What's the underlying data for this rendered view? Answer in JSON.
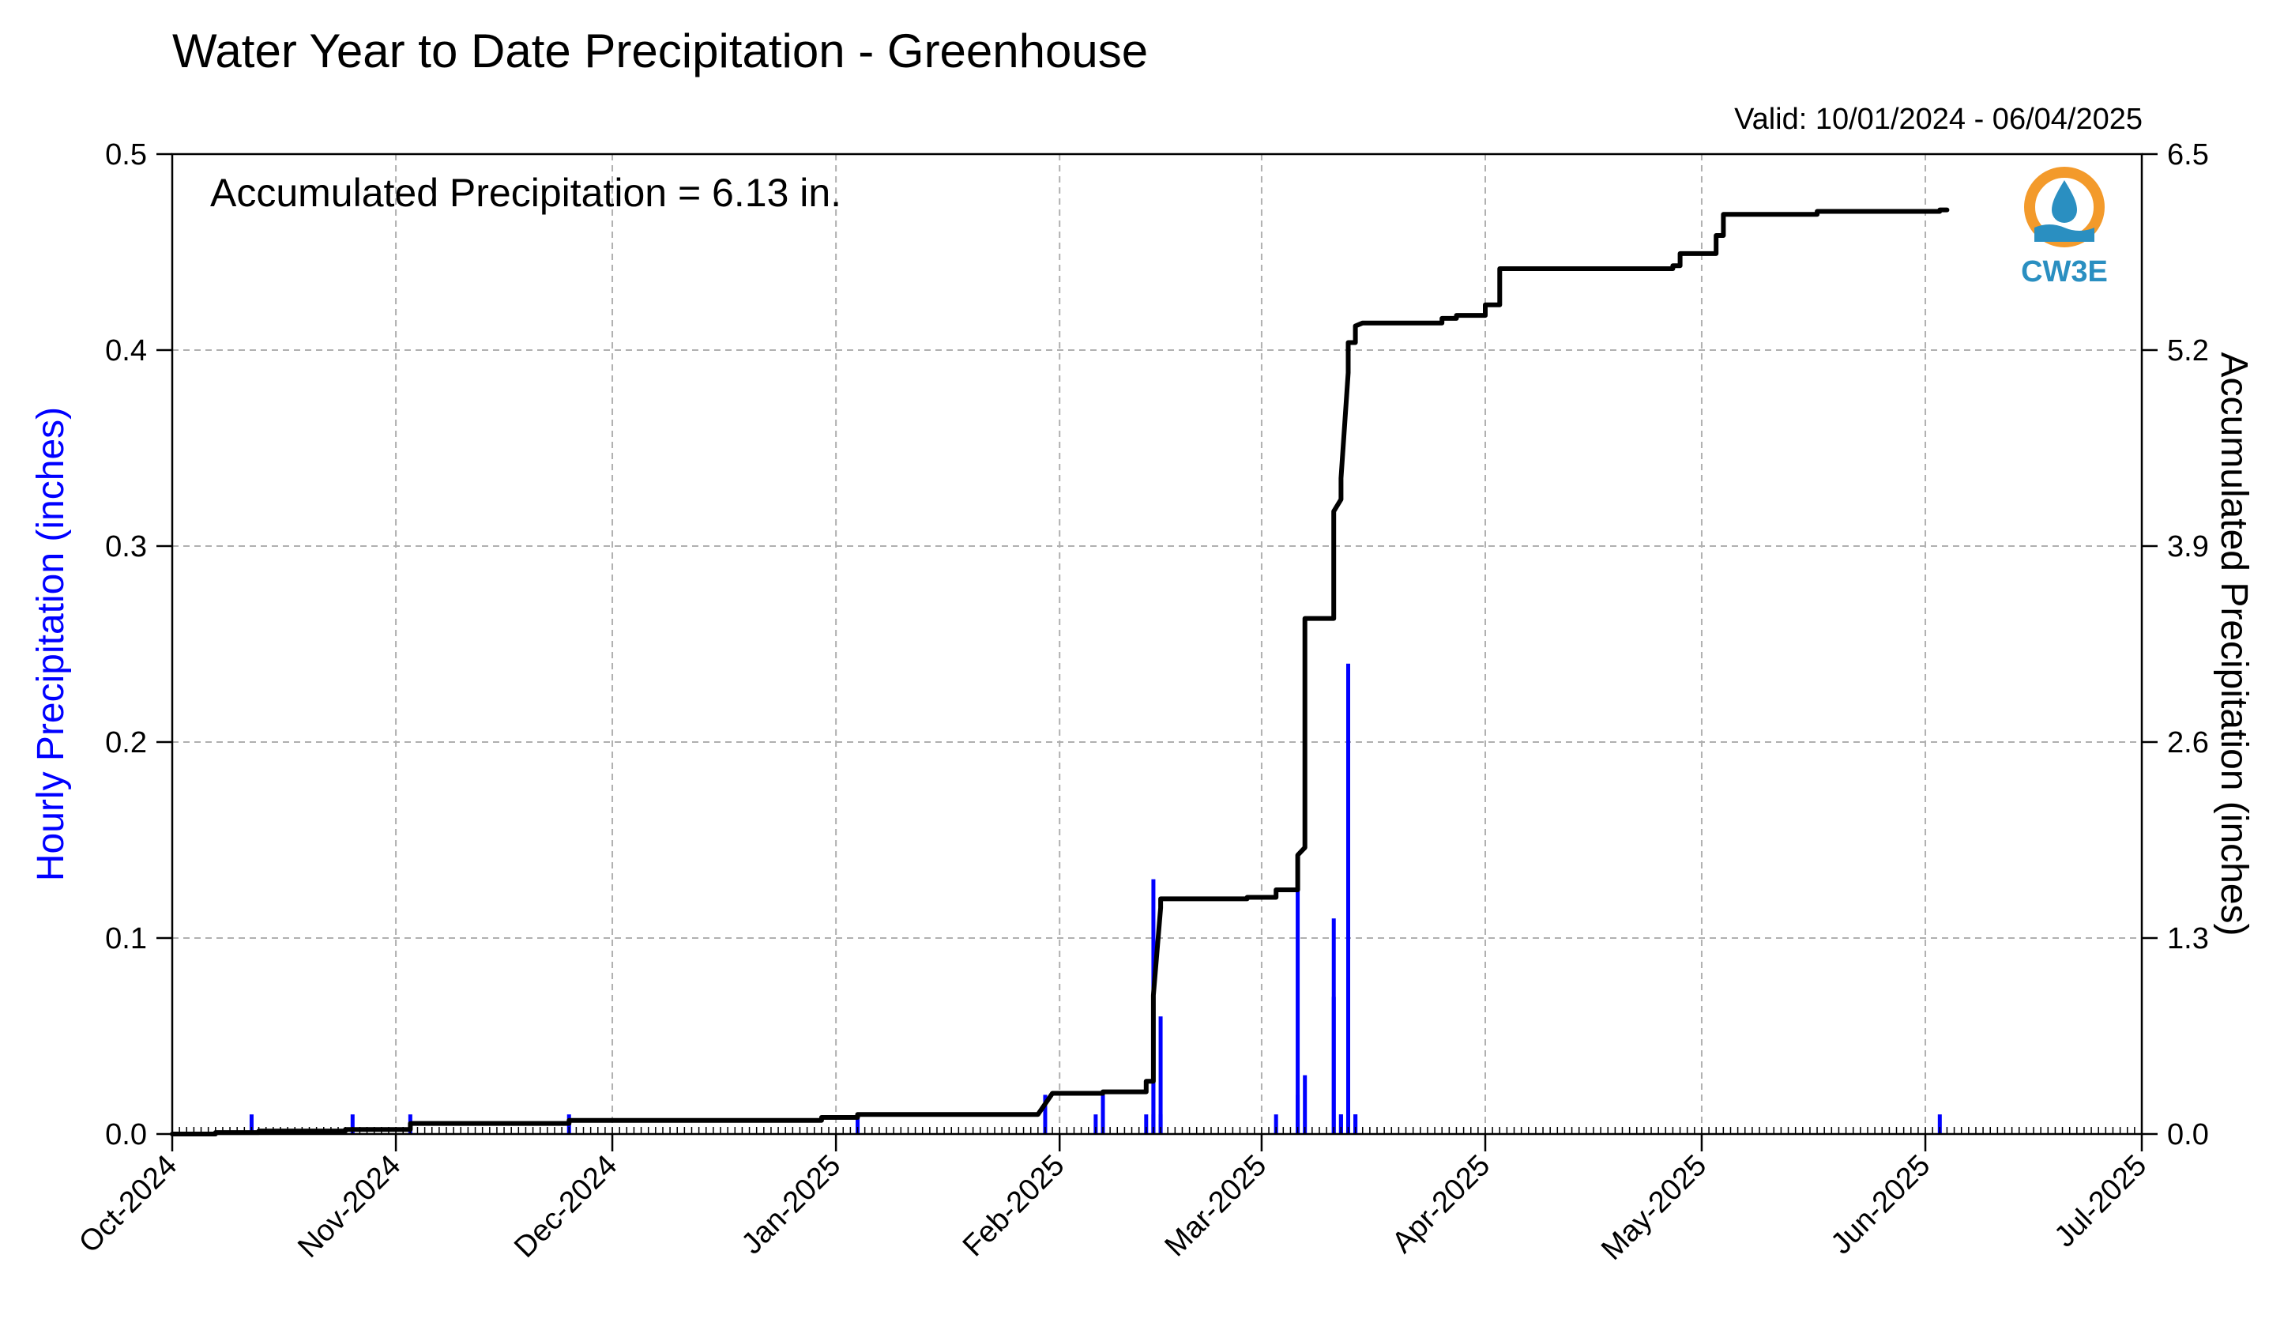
{
  "chart_data": {
    "type": "bar",
    "title": "Water Year to Date Precipitation - Greenhouse",
    "valid_text": "Valid: 10/01/2024 - 06/04/2025",
    "annotation": "Accumulated Precipitation = 6.13 in.",
    "logo_text": "CW3E",
    "ylabel_left": "Hourly Precipitation (inches)",
    "ylabel_right": "Accumulated Precipitation (inches)",
    "x_range": [
      "2024-10-01",
      "2025-07-01"
    ],
    "x_ticks": [
      {
        "date": "2024-10-01",
        "label": "Oct-2024"
      },
      {
        "date": "2024-11-01",
        "label": "Nov-2024"
      },
      {
        "date": "2024-12-01",
        "label": "Dec-2024"
      },
      {
        "date": "2025-01-01",
        "label": "Jan-2025"
      },
      {
        "date": "2025-02-01",
        "label": "Feb-2025"
      },
      {
        "date": "2025-03-01",
        "label": "Mar-2025"
      },
      {
        "date": "2025-04-01",
        "label": "Apr-2025"
      },
      {
        "date": "2025-05-01",
        "label": "May-2025"
      },
      {
        "date": "2025-06-01",
        "label": "Jun-2025"
      },
      {
        "date": "2025-07-01",
        "label": "Jul-2025"
      }
    ],
    "y_left": {
      "range": [
        0,
        0.5
      ],
      "ticks": [
        0.0,
        0.1,
        0.2,
        0.3,
        0.4,
        0.5
      ],
      "tick_labels": [
        "0.0",
        "0.1",
        "0.2",
        "0.3",
        "0.4",
        "0.5"
      ]
    },
    "y_right": {
      "range": [
        0,
        6.5
      ],
      "ticks": [
        0.0,
        1.3,
        2.6,
        3.9,
        5.2,
        6.5
      ],
      "tick_labels": [
        "0.0",
        "1.3",
        "2.6",
        "3.9",
        "5.2",
        "6.5"
      ]
    },
    "grid": true,
    "colors": {
      "hourly": "#0000ff",
      "accumulated": "#000000",
      "grid": "#b0b0b0",
      "ylabel_left": "#0000ff",
      "logo_orange": "#f39a2b",
      "logo_blue": "#2a8fc1"
    },
    "series": [
      {
        "type": "bar",
        "axis": "left",
        "points": [
          {
            "date": "2024-10-12",
            "value": 0.01
          },
          {
            "date": "2024-10-26",
            "value": 0.01
          },
          {
            "date": "2024-11-03",
            "value": 0.01
          },
          {
            "date": "2024-11-25",
            "value": 0.01
          },
          {
            "date": "2025-01-04",
            "value": 0.01
          },
          {
            "date": "2025-01-30",
            "value": 0.02
          },
          {
            "date": "2025-02-06",
            "value": 0.01
          },
          {
            "date": "2025-02-07",
            "value": 0.02
          },
          {
            "date": "2025-02-13",
            "value": 0.01
          },
          {
            "date": "2025-02-14",
            "value": 0.01
          },
          {
            "date": "2025-02-14",
            "value": 0.04
          },
          {
            "date": "2025-02-14",
            "value": 0.13
          },
          {
            "date": "2025-02-15",
            "value": 0.06
          },
          {
            "date": "2025-02-15",
            "value": 0.01
          },
          {
            "date": "2025-03-03",
            "value": 0.01
          },
          {
            "date": "2025-03-06",
            "value": 0.02
          },
          {
            "date": "2025-03-06",
            "value": 0.14
          },
          {
            "date": "2025-03-07",
            "value": 0.03
          },
          {
            "date": "2025-03-11",
            "value": 0.07
          },
          {
            "date": "2025-03-11",
            "value": 0.11
          },
          {
            "date": "2025-03-12",
            "value": 0.01
          },
          {
            "date": "2025-03-12",
            "value": 0.01
          },
          {
            "date": "2025-03-13",
            "value": 0.24
          },
          {
            "date": "2025-03-13",
            "value": 0.08
          },
          {
            "date": "2025-03-14",
            "value": 0.01
          },
          {
            "date": "2025-03-14",
            "value": 0.01
          },
          {
            "date": "2025-06-03",
            "value": 0.01
          }
        ]
      },
      {
        "type": "line",
        "axis": "right",
        "points": [
          {
            "date": "2024-10-01",
            "value": 0.0
          },
          {
            "date": "2024-10-07",
            "value": 0.0
          },
          {
            "date": "2024-10-07",
            "value": 0.01
          },
          {
            "date": "2024-10-13",
            "value": 0.01
          },
          {
            "date": "2024-10-13",
            "value": 0.02
          },
          {
            "date": "2024-10-25",
            "value": 0.02
          },
          {
            "date": "2024-10-25",
            "value": 0.03
          },
          {
            "date": "2024-11-03",
            "value": 0.03
          },
          {
            "date": "2024-11-03",
            "value": 0.07
          },
          {
            "date": "2024-11-25",
            "value": 0.07
          },
          {
            "date": "2024-11-25",
            "value": 0.09
          },
          {
            "date": "2024-12-30",
            "value": 0.09
          },
          {
            "date": "2024-12-30",
            "value": 0.11
          },
          {
            "date": "2025-01-04",
            "value": 0.11
          },
          {
            "date": "2025-01-04",
            "value": 0.13
          },
          {
            "date": "2025-01-29",
            "value": 0.13
          },
          {
            "date": "2025-01-30",
            "value": 0.2
          },
          {
            "date": "2025-01-31",
            "value": 0.27
          },
          {
            "date": "2025-02-07",
            "value": 0.27
          },
          {
            "date": "2025-02-07",
            "value": 0.28
          },
          {
            "date": "2025-02-13",
            "value": 0.28
          },
          {
            "date": "2025-02-13",
            "value": 0.35
          },
          {
            "date": "2025-02-14",
            "value": 0.35
          },
          {
            "date": "2025-02-14",
            "value": 0.45
          },
          {
            "date": "2025-02-14",
            "value": 0.6
          },
          {
            "date": "2025-02-14",
            "value": 0.92
          },
          {
            "date": "2025-02-15",
            "value": 1.5
          },
          {
            "date": "2025-02-15",
            "value": 1.56
          },
          {
            "date": "2025-02-27",
            "value": 1.56
          },
          {
            "date": "2025-02-27",
            "value": 1.57
          },
          {
            "date": "2025-03-03",
            "value": 1.57
          },
          {
            "date": "2025-03-03",
            "value": 1.62
          },
          {
            "date": "2025-03-06",
            "value": 1.62
          },
          {
            "date": "2025-03-06",
            "value": 1.85
          },
          {
            "date": "2025-03-07",
            "value": 1.9
          },
          {
            "date": "2025-03-07",
            "value": 3.42
          },
          {
            "date": "2025-03-11",
            "value": 3.42
          },
          {
            "date": "2025-03-11",
            "value": 3.78
          },
          {
            "date": "2025-03-11",
            "value": 4.13
          },
          {
            "date": "2025-03-12",
            "value": 4.21
          },
          {
            "date": "2025-03-12",
            "value": 4.35
          },
          {
            "date": "2025-03-13",
            "value": 5.05
          },
          {
            "date": "2025-03-13",
            "value": 5.25
          },
          {
            "date": "2025-03-14",
            "value": 5.25
          },
          {
            "date": "2025-03-14",
            "value": 5.36
          },
          {
            "date": "2025-03-15",
            "value": 5.38
          },
          {
            "date": "2025-03-26",
            "value": 5.38
          },
          {
            "date": "2025-03-26",
            "value": 5.41
          },
          {
            "date": "2025-03-28",
            "value": 5.41
          },
          {
            "date": "2025-03-28",
            "value": 5.43
          },
          {
            "date": "2025-04-01",
            "value": 5.43
          },
          {
            "date": "2025-04-01",
            "value": 5.5
          },
          {
            "date": "2025-04-03",
            "value": 5.5
          },
          {
            "date": "2025-04-03",
            "value": 5.74
          },
          {
            "date": "2025-04-27",
            "value": 5.74
          },
          {
            "date": "2025-04-27",
            "value": 5.76
          },
          {
            "date": "2025-04-28",
            "value": 5.76
          },
          {
            "date": "2025-04-28",
            "value": 5.84
          },
          {
            "date": "2025-05-03",
            "value": 5.84
          },
          {
            "date": "2025-05-03",
            "value": 5.96
          },
          {
            "date": "2025-05-04",
            "value": 5.96
          },
          {
            "date": "2025-05-04",
            "value": 6.1
          },
          {
            "date": "2025-05-17",
            "value": 6.1
          },
          {
            "date": "2025-05-17",
            "value": 6.12
          },
          {
            "date": "2025-06-03",
            "value": 6.12
          },
          {
            "date": "2025-06-03",
            "value": 6.13
          },
          {
            "date": "2025-06-04",
            "value": 6.13
          }
        ]
      }
    ]
  }
}
